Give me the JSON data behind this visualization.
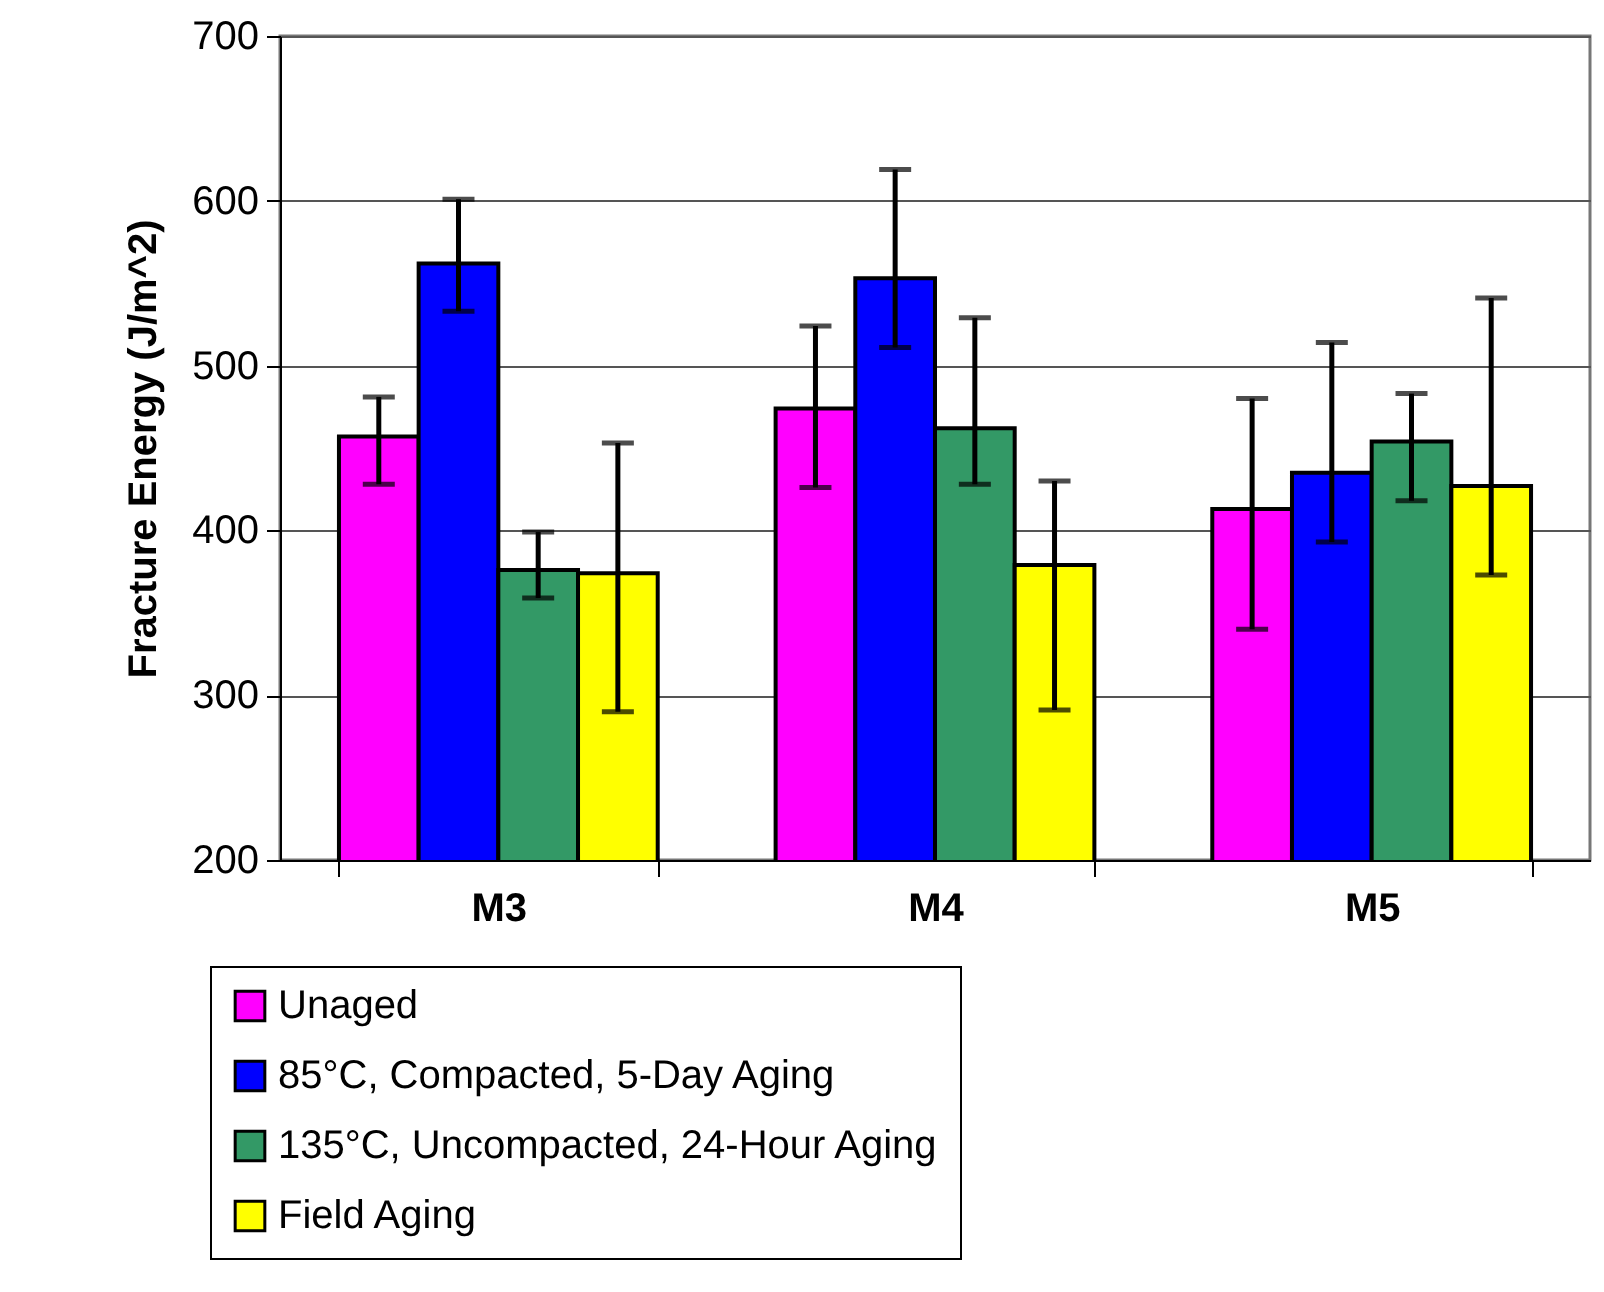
{
  "chart_data": {
    "type": "bar",
    "ylabel": "Fracture Energy (J/m^2)",
    "categories": [
      "M3",
      "M4",
      "M5"
    ],
    "series": [
      {
        "name": "Unaged",
        "color": "#ff00ff",
        "values": [
          457,
          474,
          413
        ],
        "errors": [
          [
            428,
            481
          ],
          [
            426,
            524
          ],
          [
            340,
            480
          ]
        ]
      },
      {
        "name": "85°C, Compacted, 5-Day Aging",
        "color": "#0000ff",
        "values": [
          562,
          553,
          435
        ],
        "errors": [
          [
            533,
            601
          ],
          [
            511,
            619
          ],
          [
            393,
            514
          ]
        ]
      },
      {
        "name": "135°C, Uncompacted, 24-Hour Aging",
        "color": "#339966",
        "values": [
          376,
          462,
          454
        ],
        "errors": [
          [
            359,
            399
          ],
          [
            428,
            529
          ],
          [
            418,
            483
          ]
        ]
      },
      {
        "name": "Field Aging",
        "color": "#ffff00",
        "values": [
          374,
          379,
          427
        ],
        "errors": [
          [
            290,
            453
          ],
          [
            291,
            430
          ],
          [
            373,
            541
          ]
        ]
      }
    ],
    "ylim": [
      200,
      700
    ],
    "yticks": [
      200,
      300,
      400,
      500,
      600,
      700
    ],
    "grid": "y",
    "legend": "bottom"
  }
}
